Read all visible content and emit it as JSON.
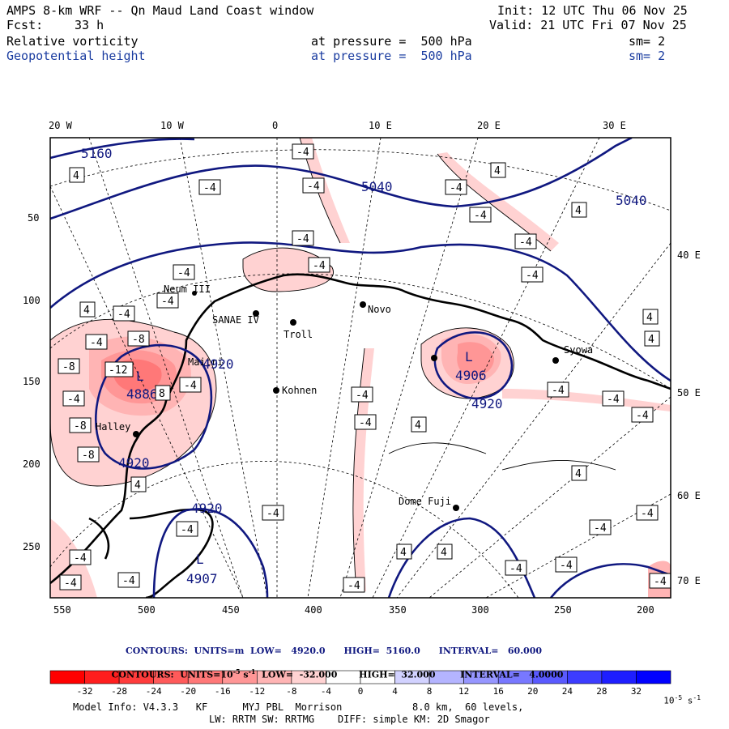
{
  "header": {
    "title": "AMPS 8-km WRF -- Qn Maud Land Coast window",
    "fcst_label": "Fcst:",
    "fcst_value": "33 h",
    "init": "Init: 12 UTC Thu 06 Nov 25",
    "valid": "Valid: 21 UTC Fri 07 Nov 25",
    "field1": "Relative vorticity",
    "field2": "Geopotential height",
    "level1": "at pressure =  500 hPa",
    "level2": "at pressure =  500 hPa",
    "sm1": "sm= 2",
    "sm2": "sm= 2"
  },
  "axes": {
    "top_lon": [
      "20 W",
      "10 W",
      "0",
      "10 E",
      "20 E",
      "30 E"
    ],
    "right_lon": [
      "40 E",
      "50 E",
      "60 E",
      "70 E"
    ],
    "left_grid": [
      "50",
      "100",
      "150",
      "200",
      "250"
    ],
    "bottom_grid": [
      "550",
      "500",
      "450",
      "400",
      "350",
      "300",
      "250",
      "200"
    ]
  },
  "stations": [
    "Neum III",
    "SANAE IV",
    "Troll",
    "Novo",
    "Kohnen",
    "Maitri",
    "Halley",
    "Dome Fuji",
    "Syowa"
  ],
  "height_contours": [
    "5160",
    "5040",
    "5040",
    "4920",
    "4920",
    "4920",
    "4920",
    "4906",
    "4886",
    "4907"
  ],
  "pressure_centers": [
    "L",
    "L",
    "L"
  ],
  "vort_labels": {
    "neg4": "-4",
    "neg8": "-8",
    "neg12": "-12",
    "pos4": "4",
    "pos8": "8"
  },
  "contour_info": {
    "height_line": "CONTOURS:  UNITS=m  LOW=   4920.0      HIGH=  5160.0      INTERVAL=   60.000",
    "vort_line_a": "CONTOURS:  UNITS=10",
    "vort_line_b": " s",
    "vort_line_c": "  LOW=  -32.000       HIGH=  32.000        INTERVAL=   4.0000",
    "vort_exp1": "-5",
    "vort_exp2": "-1"
  },
  "colorbar": {
    "ticks": [
      "-32",
      "-28",
      "-24",
      "-20",
      "-16",
      "-12",
      "-8",
      "-4",
      "0",
      "4",
      "8",
      "12",
      "16",
      "20",
      "24",
      "28",
      "32"
    ],
    "unit_a": "10",
    "unit_exp": "-5",
    "unit_b": " s",
    "unit_exp2": "-1",
    "colors": [
      "#ff0000",
      "#ff1e1e",
      "#ff3c3c",
      "#ff5a5a",
      "#ff7878",
      "#ff9696",
      "#ffb4b4",
      "#ffd2d2",
      "#ffffff",
      "#ffffff",
      "#d2d2ff",
      "#b4b4ff",
      "#9696ff",
      "#7878ff",
      "#5a5aff",
      "#3c3cff",
      "#1e1eff",
      "#0000ff"
    ]
  },
  "model_info": {
    "line1": "Model Info: V4.3.3   KF      MYJ PBL  Morrison            8.0 km,  60 levels,",
    "line2": "LW: RRTM SW: RRTMG    DIFF: simple KM: 2D Smagor"
  }
}
